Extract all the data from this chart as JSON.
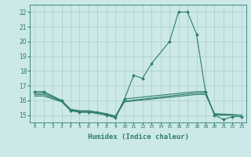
{
  "xlabel": "Humidex (Indice chaleur)",
  "main_x": [
    0,
    1,
    3,
    4,
    5,
    6,
    7,
    8,
    9,
    10,
    11,
    12,
    13,
    15,
    16,
    17,
    18,
    19,
    20,
    21,
    22,
    23
  ],
  "main_y": [
    16.6,
    16.6,
    16.0,
    15.3,
    15.2,
    15.2,
    15.2,
    15.0,
    14.8,
    16.1,
    17.7,
    17.5,
    18.5,
    20.0,
    22.0,
    22.0,
    20.5,
    16.6,
    15.0,
    14.7,
    14.9,
    14.9
  ],
  "flat1_x": [
    0,
    1,
    3,
    4,
    5,
    6,
    7,
    8,
    9,
    10,
    18,
    19,
    20,
    23
  ],
  "flat1_y": [
    16.5,
    16.5,
    16.0,
    15.4,
    15.3,
    15.3,
    15.2,
    15.1,
    14.9,
    16.1,
    16.6,
    16.6,
    15.0,
    15.0
  ],
  "flat2_x": [
    0,
    1,
    3,
    4,
    5,
    6,
    7,
    8,
    9,
    10,
    18,
    19,
    20,
    23
  ],
  "flat2_y": [
    16.4,
    16.4,
    15.95,
    15.35,
    15.25,
    15.25,
    15.15,
    15.05,
    14.95,
    15.95,
    16.5,
    16.5,
    15.05,
    15.0
  ],
  "flat3_x": [
    0,
    1,
    3,
    4,
    5,
    6,
    7,
    8,
    9,
    10,
    18,
    19,
    20,
    23
  ],
  "flat3_y": [
    16.3,
    16.3,
    15.9,
    15.3,
    15.2,
    15.2,
    15.1,
    15.0,
    14.9,
    15.9,
    16.4,
    16.4,
    15.1,
    15.0
  ],
  "line_color": "#2e7d6e",
  "bg_color": "#cce8e8",
  "grid_color": "#aacccc",
  "ylim": [
    14.5,
    22.5
  ],
  "xlim": [
    -0.5,
    23.5
  ],
  "yticks": [
    15,
    16,
    17,
    18,
    19,
    20,
    21,
    22
  ],
  "xticks": [
    0,
    1,
    2,
    3,
    4,
    5,
    6,
    7,
    8,
    9,
    10,
    11,
    12,
    13,
    14,
    15,
    16,
    17,
    18,
    19,
    20,
    21,
    22,
    23
  ],
  "markersize": 2.0,
  "linewidth": 0.8
}
